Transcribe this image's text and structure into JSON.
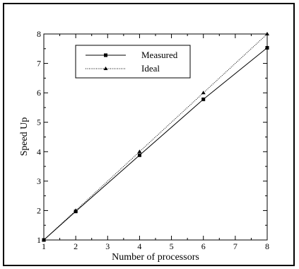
{
  "chart_data": {
    "type": "line",
    "xlabel": "Number of processors",
    "ylabel": "Speed Up",
    "xlim": [
      1,
      8
    ],
    "ylim": [
      1,
      8
    ],
    "x_ticks": [
      "1",
      "2",
      "3",
      "4",
      "5",
      "6",
      "7",
      "8"
    ],
    "y_ticks": [
      "1",
      "2",
      "3",
      "4",
      "5",
      "6",
      "7",
      "8"
    ],
    "grid": false,
    "legend_position": "top-left",
    "series": [
      {
        "name": "Measured",
        "marker": "square",
        "line_style": "solid",
        "x": [
          1,
          2,
          4,
          6,
          8
        ],
        "y": [
          1,
          1.97,
          3.88,
          5.78,
          7.53
        ]
      },
      {
        "name": "Ideal",
        "marker": "triangle",
        "line_style": "dotted",
        "x": [
          1,
          2,
          4,
          6,
          8
        ],
        "y": [
          1,
          2,
          4,
          6,
          8
        ]
      }
    ]
  }
}
